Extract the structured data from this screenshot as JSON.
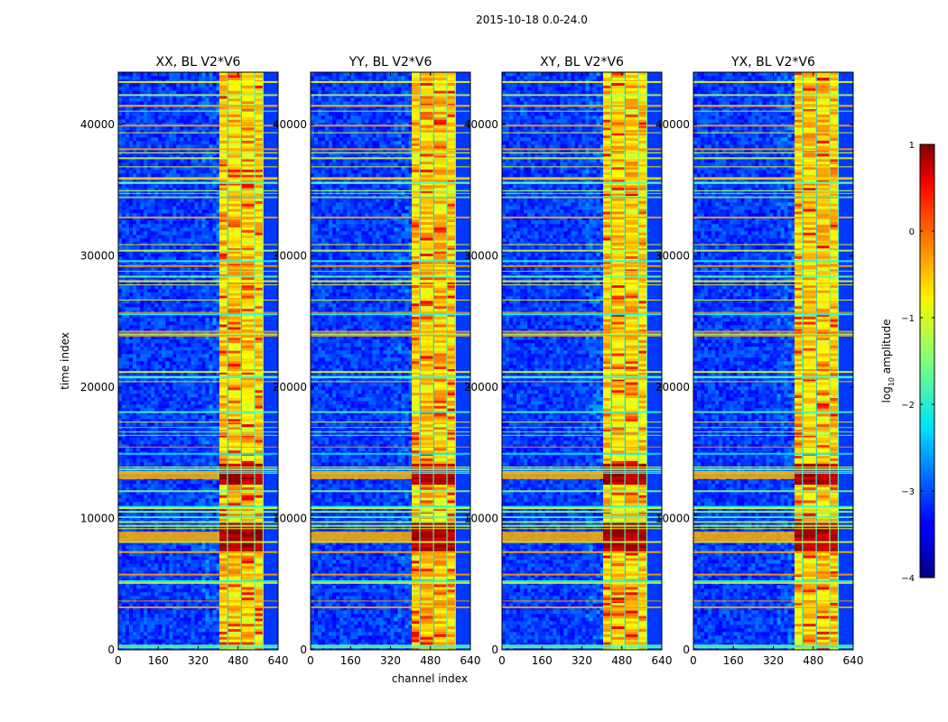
{
  "chart_data": {
    "type": "heatmap",
    "suptitle": "2015-10-18 0.0-24.0",
    "xlabel": "channel index",
    "ylabel": "time index",
    "xlim": [
      0,
      640
    ],
    "ylim": [
      0,
      44000
    ],
    "xticks": [
      0,
      160,
      320,
      480,
      640
    ],
    "yticks": [
      0,
      10000,
      20000,
      30000,
      40000
    ],
    "panels": [
      {
        "title": "XX, BL V2*V6"
      },
      {
        "title": "YY, BL V2*V6"
      },
      {
        "title": "XY, BL V2*V6"
      },
      {
        "title": "YX, BL V2*V6"
      }
    ],
    "colorbar": {
      "label": "log",
      "label_sub": "10",
      "label_tail": " amplitude",
      "range": [
        -4,
        1
      ],
      "ticks": [
        1,
        0,
        -1,
        -2,
        -3,
        -4
      ],
      "tick_labels": [
        "1",
        "0",
        "−1",
        "−2",
        "−3",
        "−4"
      ],
      "colormap": "jet"
    },
    "features": {
      "rfi_band_channels": [
        405,
        590
      ],
      "strong_time_ranges": [
        [
          7500,
          9800
        ],
        [
          12600,
          14200
        ]
      ]
    }
  }
}
